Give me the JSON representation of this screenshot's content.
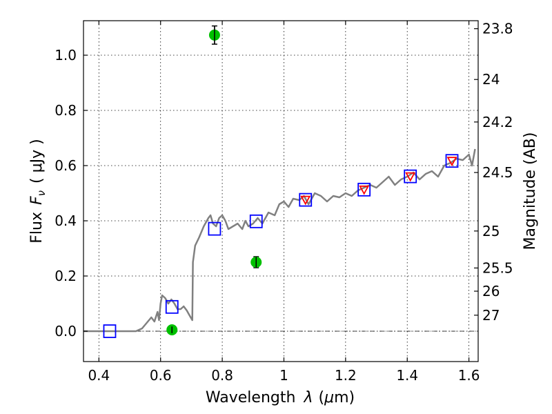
{
  "chart_data": {
    "type": "scatter",
    "xlabel": "Wavelength",
    "xlabel_symbol": "λ",
    "xlabel_unit_open": "(",
    "xlabel_unit_mu": "μ",
    "xlabel_unit_rest": "m)",
    "ylabel": "Flux",
    "ylabel_symbol": "F",
    "ylabel_subscript": "ν",
    "ylabel_unit": "( μJy )",
    "y2label": "Magnitude (AB)",
    "xlim": [
      0.35,
      1.63
    ],
    "ylim": [
      -0.11,
      1.125
    ],
    "grid": true,
    "x_ticks": [
      0.4,
      0.6,
      0.8,
      1.0,
      1.2,
      1.4,
      1.6
    ],
    "x_tick_labels": [
      "0.4",
      "0.6",
      "0.8",
      "1",
      "1.2",
      "1.4",
      "1.6"
    ],
    "y_ticks": [
      0.0,
      0.2,
      0.4,
      0.6,
      0.8,
      1.0
    ],
    "y_tick_labels": [
      "0.0",
      "0.2",
      "0.4",
      "0.6",
      "0.8",
      "1.0"
    ],
    "y2_ticks": [
      {
        "label": "23.8",
        "flux": 1.096
      },
      {
        "label": "24",
        "flux": 0.912
      },
      {
        "label": "24.2",
        "flux": 0.758
      },
      {
        "label": "24.5",
        "flux": 0.575
      },
      {
        "label": "25",
        "flux": 0.363
      },
      {
        "label": "25.5",
        "flux": 0.229
      },
      {
        "label": "26",
        "flux": 0.145
      },
      {
        "label": "27",
        "flux": 0.058
      }
    ],
    "series": [
      {
        "kind": "model-spectrum",
        "color": "#808080",
        "points": [
          [
            0.35,
            0.0
          ],
          [
            0.52,
            0.0
          ],
          [
            0.54,
            0.01
          ],
          [
            0.555,
            0.03
          ],
          [
            0.57,
            0.05
          ],
          [
            0.58,
            0.035
          ],
          [
            0.59,
            0.07
          ],
          [
            0.595,
            0.04
          ],
          [
            0.6,
            0.1
          ],
          [
            0.605,
            0.13
          ],
          [
            0.615,
            0.12
          ],
          [
            0.625,
            0.1
          ],
          [
            0.635,
            0.115
          ],
          [
            0.645,
            0.1
          ],
          [
            0.655,
            0.08
          ],
          [
            0.665,
            0.08
          ],
          [
            0.675,
            0.09
          ],
          [
            0.685,
            0.075
          ],
          [
            0.695,
            0.055
          ],
          [
            0.703,
            0.04
          ],
          [
            0.705,
            0.25
          ],
          [
            0.712,
            0.31
          ],
          [
            0.725,
            0.34
          ],
          [
            0.74,
            0.38
          ],
          [
            0.755,
            0.41
          ],
          [
            0.762,
            0.42
          ],
          [
            0.77,
            0.39
          ],
          [
            0.78,
            0.38
          ],
          [
            0.79,
            0.41
          ],
          [
            0.8,
            0.42
          ],
          [
            0.81,
            0.4
          ],
          [
            0.82,
            0.37
          ],
          [
            0.835,
            0.38
          ],
          [
            0.85,
            0.39
          ],
          [
            0.865,
            0.37
          ],
          [
            0.875,
            0.4
          ],
          [
            0.885,
            0.38
          ],
          [
            0.9,
            0.39
          ],
          [
            0.915,
            0.41
          ],
          [
            0.93,
            0.39
          ],
          [
            0.95,
            0.43
          ],
          [
            0.97,
            0.42
          ],
          [
            0.985,
            0.46
          ],
          [
            1.0,
            0.47
          ],
          [
            1.015,
            0.45
          ],
          [
            1.03,
            0.48
          ],
          [
            1.05,
            0.475
          ],
          [
            1.065,
            0.49
          ],
          [
            1.08,
            0.46
          ],
          [
            1.1,
            0.5
          ],
          [
            1.12,
            0.49
          ],
          [
            1.14,
            0.47
          ],
          [
            1.16,
            0.49
          ],
          [
            1.18,
            0.485
          ],
          [
            1.2,
            0.5
          ],
          [
            1.22,
            0.49
          ],
          [
            1.24,
            0.51
          ],
          [
            1.26,
            0.52
          ],
          [
            1.28,
            0.53
          ],
          [
            1.3,
            0.52
          ],
          [
            1.32,
            0.54
          ],
          [
            1.34,
            0.56
          ],
          [
            1.36,
            0.53
          ],
          [
            1.38,
            0.55
          ],
          [
            1.4,
            0.56
          ],
          [
            1.42,
            0.575
          ],
          [
            1.44,
            0.55
          ],
          [
            1.46,
            0.57
          ],
          [
            1.48,
            0.58
          ],
          [
            1.5,
            0.56
          ],
          [
            1.52,
            0.6
          ],
          [
            1.54,
            0.61
          ],
          [
            1.56,
            0.625
          ],
          [
            1.58,
            0.62
          ],
          [
            1.6,
            0.64
          ],
          [
            1.61,
            0.6
          ],
          [
            1.62,
            0.66
          ]
        ]
      },
      {
        "kind": "model-photometry",
        "marker": "open-square",
        "color": "#0000ff",
        "points": [
          [
            0.435,
            0.0
          ],
          [
            0.637,
            0.088
          ],
          [
            0.775,
            0.371
          ],
          [
            0.91,
            0.398
          ],
          [
            1.07,
            0.476
          ],
          [
            1.26,
            0.513
          ],
          [
            1.41,
            0.561
          ],
          [
            1.545,
            0.617
          ]
        ]
      },
      {
        "kind": "observed-upper-limits",
        "marker": "triangle-down",
        "color": "#ff0000",
        "points": [
          [
            1.07,
            0.476
          ],
          [
            1.26,
            0.513
          ],
          [
            1.41,
            0.561
          ],
          [
            1.545,
            0.617
          ]
        ]
      },
      {
        "kind": "observed-detections",
        "marker": "filled-circle",
        "color": "#00c000",
        "points": [
          [
            0.637,
            0.005
          ],
          [
            0.775,
            1.073
          ],
          [
            0.91,
            0.25
          ]
        ],
        "errors": [
          0.012,
          0.033,
          0.02
        ]
      }
    ]
  }
}
